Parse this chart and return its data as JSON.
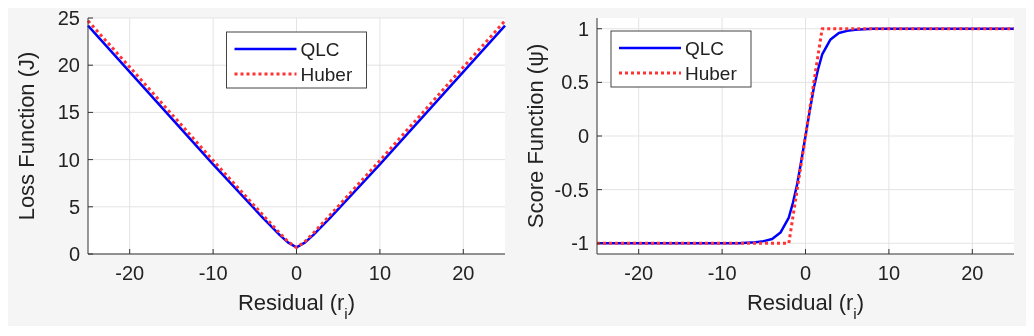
{
  "chart_data": [
    {
      "type": "line",
      "xlabel": "Residual (r$_{i}$)",
      "ylabel": "Loss Function (J)",
      "xlim": [
        -25,
        25
      ],
      "ylim": [
        0,
        25
      ],
      "xticks": [
        -20,
        -10,
        0,
        10,
        20
      ],
      "yticks": [
        0,
        5,
        10,
        15,
        20,
        25
      ],
      "grid": true,
      "legend": "top",
      "series": [
        {
          "name": "QLC",
          "color": "#0000ff",
          "line_style": "solid",
          "x": [
            -25,
            -20,
            -10,
            -4,
            -2,
            -1,
            0,
            1,
            2,
            4,
            10,
            20,
            25
          ],
          "values": [
            24.2,
            19.3,
            9.5,
            3.8,
            2.0,
            1.2,
            0.7,
            1.2,
            2.0,
            3.8,
            9.5,
            19.3,
            24.2
          ]
        },
        {
          "name": "Huber",
          "color": "#ff3333",
          "line_style": "dotted",
          "x": [
            -25,
            -20,
            -10,
            -4,
            -2,
            -1,
            0,
            1,
            2,
            4,
            10,
            20,
            25
          ],
          "values": [
            24.7,
            19.8,
            9.9,
            4.1,
            2.2,
            1.3,
            0.7,
            1.3,
            2.2,
            4.1,
            9.9,
            19.8,
            24.7
          ]
        }
      ]
    },
    {
      "type": "line",
      "xlabel": "Residual (r$_{i}$)",
      "ylabel": "Score Function (ψ)",
      "xlim": [
        -25,
        25
      ],
      "ylim": [
        -1.1,
        1.1
      ],
      "xticks": [
        -20,
        -10,
        0,
        10,
        20
      ],
      "yticks": [
        -1,
        -0.5,
        0,
        0.5,
        1
      ],
      "grid": true,
      "legend": "top left",
      "series": [
        {
          "name": "QLC",
          "color": "#0000ff",
          "line_style": "solid",
          "x": [
            -25,
            -8,
            -6,
            -5,
            -4,
            -3,
            -2,
            -1.5,
            -1,
            -0.5,
            0,
            0.5,
            1,
            1.5,
            2,
            3,
            4,
            5,
            6,
            8,
            25
          ],
          "values": [
            -1,
            -1,
            -0.99,
            -0.98,
            -0.96,
            -0.9,
            -0.76,
            -0.62,
            -0.45,
            -0.23,
            0,
            0.23,
            0.45,
            0.62,
            0.76,
            0.9,
            0.96,
            0.98,
            0.99,
            1,
            1
          ]
        },
        {
          "name": "Huber",
          "color": "#ff3333",
          "line_style": "dotted",
          "x": [
            -25,
            -2,
            2,
            25
          ],
          "values": [
            -1,
            -1,
            1,
            1
          ]
        }
      ]
    }
  ]
}
